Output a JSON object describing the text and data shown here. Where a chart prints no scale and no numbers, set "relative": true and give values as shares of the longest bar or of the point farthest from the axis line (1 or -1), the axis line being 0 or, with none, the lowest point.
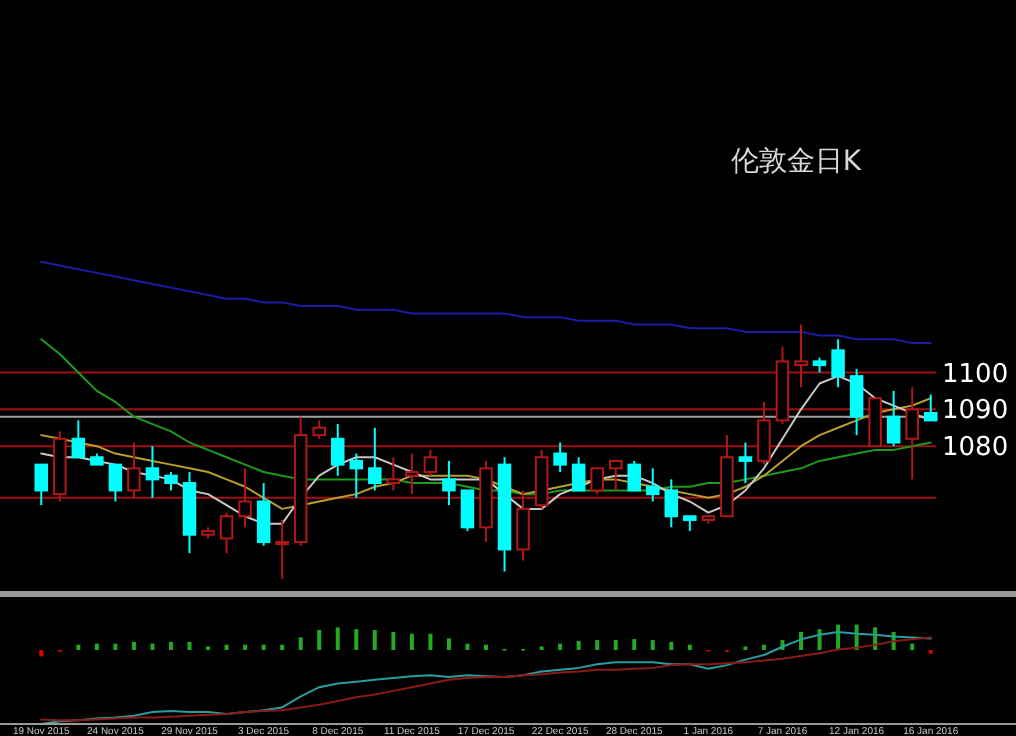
{
  "chart_data": [
    {
      "type": "candlestick",
      "title": "伦敦金日K",
      "ylim": [
        1041,
        1201
      ],
      "categories": [
        null,
        null,
        null,
        null,
        null,
        null,
        null,
        null,
        null,
        null,
        null,
        null,
        null,
        null,
        null,
        null,
        null,
        null,
        null,
        null,
        null,
        null,
        null,
        null,
        null,
        null,
        null,
        null,
        null,
        null,
        null,
        null,
        null,
        null,
        null,
        null,
        null,
        null,
        null,
        null,
        null,
        null,
        null,
        null,
        null,
        null,
        null,
        null,
        null
      ],
      "ohlc": [
        [
          1075,
          1075,
          1064,
          1068
        ],
        [
          1067,
          1084,
          1065,
          1082
        ],
        [
          1082,
          1087,
          1077,
          1077
        ],
        [
          1077,
          1078,
          1075,
          1075
        ],
        [
          1075,
          1075,
          1065,
          1068
        ],
        [
          1068,
          1081,
          1066,
          1074
        ],
        [
          1074,
          1080,
          1066,
          1071
        ],
        [
          1072,
          1073,
          1068,
          1070
        ],
        [
          1070,
          1073,
          1051,
          1056
        ],
        [
          1056,
          1058,
          1055,
          1057
        ],
        [
          1055,
          1062,
          1051,
          1061
        ],
        [
          1061,
          1074,
          1058,
          1065
        ],
        [
          1065,
          1070,
          1053,
          1054
        ],
        [
          1054,
          1060,
          1044,
          1054
        ],
        [
          1054,
          1088,
          1053,
          1083
        ],
        [
          1083,
          1087,
          1082,
          1085
        ],
        [
          1082,
          1086,
          1072,
          1075
        ],
        [
          1076,
          1078,
          1066,
          1074
        ],
        [
          1074,
          1085,
          1068,
          1070
        ],
        [
          1070,
          1077,
          1068,
          1071
        ],
        [
          1072,
          1078,
          1067,
          1073
        ],
        [
          1073,
          1079,
          1072,
          1077
        ],
        [
          1071,
          1076,
          1064,
          1068
        ],
        [
          1068,
          1068,
          1057,
          1058
        ],
        [
          1058,
          1076,
          1054,
          1074
        ],
        [
          1075,
          1077,
          1046,
          1052
        ],
        [
          1052,
          1068,
          1049,
          1063
        ],
        [
          1064,
          1079,
          1063,
          1077
        ],
        [
          1078,
          1081,
          1073,
          1075
        ],
        [
          1075,
          1077,
          1068,
          1068
        ],
        [
          1068,
          1074,
          1067,
          1074
        ],
        [
          1074,
          1076,
          1068,
          1076
        ],
        [
          1075,
          1076,
          1068,
          1068
        ],
        [
          1069,
          1074,
          1065,
          1067
        ],
        [
          1068,
          1071,
          1058,
          1061
        ],
        [
          1061,
          1061,
          1057,
          1060
        ],
        [
          1060,
          1061,
          1059,
          1061
        ],
        [
          1061,
          1083,
          1061,
          1077
        ],
        [
          1077,
          1081,
          1070,
          1076
        ],
        [
          1076,
          1092,
          1075,
          1087
        ],
        [
          1087,
          1107,
          1086,
          1103
        ],
        [
          1102,
          1113,
          1096,
          1103
        ],
        [
          1103,
          1104,
          1100,
          1102
        ],
        [
          1106,
          1109,
          1096,
          1099
        ],
        [
          1099,
          1101,
          1083,
          1088
        ],
        [
          1080,
          1093,
          1080,
          1093
        ],
        [
          1088,
          1095,
          1080,
          1081
        ],
        [
          1082,
          1096,
          1071,
          1090
        ],
        [
          1089,
          1094,
          1087,
          1087
        ]
      ],
      "colors": [
        "#00ffff",
        "#b01818",
        "#00ffff",
        "#00ffff",
        "#00ffff",
        "#b01818",
        "#00ffff",
        "#00ffff",
        "#00ffff",
        "#b01818",
        "#b01818",
        "#b01818",
        "#00ffff",
        "#b01818",
        "#b01818",
        "#b01818",
        "#00ffff",
        "#00ffff",
        "#00ffff",
        "#b01818",
        "#b01818",
        "#b01818",
        "#00ffff",
        "#00ffff",
        "#b01818",
        "#00ffff",
        "#b01818",
        "#b01818",
        "#00ffff",
        "#00ffff",
        "#b01818",
        "#b01818",
        "#00ffff",
        "#00ffff",
        "#00ffff",
        "#00ffff",
        "#b01818",
        "#b01818",
        "#00ffff",
        "#b01818",
        "#b01818",
        "#b01818",
        "#00ffff",
        "#00ffff",
        "#00ffff",
        "#b01818",
        "#00ffff",
        "#b01818",
        "#00ffff"
      ],
      "series": [
        {
          "type": "line",
          "color": "#1c1ca8",
          "values": [
            1130,
            1129,
            1128,
            1127,
            1126,
            1125,
            1124,
            1123,
            1122,
            1121,
            1120,
            1120,
            1119,
            1119,
            1118,
            1118,
            1118,
            1117,
            1117,
            1117,
            1116,
            1116,
            1116,
            1116,
            1116,
            1116,
            1115,
            1115,
            1115,
            1114,
            1114,
            1114,
            1113,
            1113,
            1113,
            1112,
            1112,
            1112,
            1111,
            1111,
            1111,
            1111,
            1110,
            1110,
            1109,
            1109,
            1109,
            1108,
            1108
          ]
        },
        {
          "type": "line",
          "color": "#1e9a1e",
          "values": [
            1109,
            1105,
            1100,
            1095,
            1092,
            1088,
            1086,
            1084,
            1081,
            1079,
            1077,
            1075,
            1073,
            1072,
            1071,
            1071,
            1071,
            1071,
            1071,
            1071,
            1070,
            1070,
            1070,
            1069,
            1068,
            1068,
            1067,
            1067,
            1068,
            1068,
            1068,
            1068,
            1068,
            1068,
            1069,
            1069,
            1070,
            1070,
            1071,
            1072,
            1073,
            1074,
            1076,
            1077,
            1078,
            1079,
            1079,
            1080,
            1081
          ]
        },
        {
          "type": "line",
          "color": "#b8a030",
          "values": [
            1083,
            1082,
            1081,
            1080,
            1078,
            1077,
            1076,
            1075,
            1074,
            1073,
            1071,
            1069,
            1066,
            1063,
            1064,
            1065,
            1066,
            1067,
            1069,
            1070,
            1072,
            1072,
            1072,
            1072,
            1071,
            1069,
            1067,
            1068,
            1069,
            1070,
            1071,
            1071,
            1070,
            1069,
            1068,
            1067,
            1066,
            1067,
            1069,
            1072,
            1076,
            1080,
            1083,
            1085,
            1087,
            1089,
            1090,
            1091,
            1093
          ]
        },
        {
          "type": "line",
          "color": "#c8c8c8",
          "values": [
            1078,
            1077,
            1077,
            1076,
            1075,
            1073,
            1072,
            1071,
            1068,
            1067,
            1064,
            1061,
            1059,
            1059,
            1066,
            1072,
            1075,
            1077,
            1077,
            1075,
            1073,
            1071,
            1071,
            1071,
            1071,
            1067,
            1063,
            1063,
            1067,
            1069,
            1071,
            1072,
            1072,
            1070,
            1067,
            1065,
            1062,
            1064,
            1068,
            1074,
            1082,
            1090,
            1097,
            1099,
            1097,
            1093,
            1091,
            1089,
            1087
          ]
        }
      ],
      "ref_lines": [
        {
          "axis": "y",
          "value": 1100,
          "label": "1100",
          "color": "#a01010"
        },
        {
          "axis": "y",
          "value": 1090,
          "label": "1090",
          "color": "#a01010"
        },
        {
          "axis": "y",
          "value": 1080,
          "label": "1080",
          "color": "#a01010"
        },
        {
          "axis": "y",
          "value": 1066,
          "label": null,
          "color": "#a01010"
        },
        {
          "axis": "y",
          "value": 1088,
          "label": null,
          "color": "#a0a0a0"
        }
      ]
    },
    {
      "type": "bar",
      "relative": true,
      "categories": [
        null,
        null,
        null,
        null,
        null,
        null,
        null,
        null,
        null,
        null,
        null,
        null,
        null,
        null,
        null,
        null,
        null,
        null,
        null,
        null,
        null,
        null,
        null,
        null,
        null,
        null,
        null,
        null,
        null,
        null,
        null,
        null,
        null,
        null,
        null,
        null,
        null,
        null,
        null,
        null,
        null,
        null,
        null,
        null,
        null,
        null,
        null,
        null,
        null
      ],
      "values": [
        -0.25,
        -0.07,
        0.21,
        0.25,
        0.25,
        0.32,
        0.25,
        0.32,
        0.32,
        0.14,
        0.21,
        0.21,
        0.21,
        0.21,
        0.5,
        0.79,
        0.89,
        0.82,
        0.79,
        0.71,
        0.64,
        0.64,
        0.46,
        0.25,
        0.21,
        0.04,
        0.04,
        0.14,
        0.25,
        0.36,
        0.39,
        0.39,
        0.43,
        0.39,
        0.32,
        0.21,
        -0.04,
        -0.07,
        0.14,
        0.21,
        0.39,
        0.71,
        0.82,
        1,
        1,
        0.89,
        0.71,
        0.25,
        -0.14
      ],
      "colors": [
        "#e00000",
        "#e00000",
        "#22aa22",
        "#22aa22",
        "#22aa22",
        "#22aa22",
        "#22aa22",
        "#22aa22",
        "#22aa22",
        "#22aa22",
        "#22aa22",
        "#22aa22",
        "#22aa22",
        "#22aa22",
        "#22aa22",
        "#22aa22",
        "#22aa22",
        "#22aa22",
        "#22aa22",
        "#22aa22",
        "#22aa22",
        "#22aa22",
        "#22aa22",
        "#22aa22",
        "#22aa22",
        "#22aa22",
        "#22aa22",
        "#22aa22",
        "#22aa22",
        "#22aa22",
        "#22aa22",
        "#22aa22",
        "#22aa22",
        "#22aa22",
        "#22aa22",
        "#22aa22",
        "#e00000",
        "#e00000",
        "#22aa22",
        "#22aa22",
        "#22aa22",
        "#22aa22",
        "#22aa22",
        "#22aa22",
        "#22aa22",
        "#22aa22",
        "#22aa22",
        "#22aa22",
        "#e00000"
      ]
    },
    {
      "type": "line",
      "relative": true,
      "tick_labels": "x",
      "categories": [
        "19 Nov 2015",
        null,
        null,
        null,
        "24 Nov 2015",
        null,
        null,
        null,
        "29 Nov 2015",
        null,
        null,
        null,
        "3 Dec 2015",
        null,
        null,
        null,
        "8 Dec 2015",
        null,
        null,
        null,
        "11 Dec 2015",
        null,
        null,
        null,
        "17 Dec 2015",
        null,
        null,
        null,
        "22 Dec 2015",
        null,
        null,
        null,
        "28 Dec 2015",
        null,
        null,
        null,
        "1 Jan 2016",
        null,
        null,
        null,
        "7 Jan 2016",
        null,
        null,
        null,
        "12 Jan 2016",
        null,
        null,
        null,
        "16 Jan 2016"
      ],
      "series": [
        {
          "color": "#2a9d9d",
          "values": [
            0,
            0.03,
            0.04,
            0.06,
            0.07,
            0.09,
            0.13,
            0.14,
            0.13,
            0.13,
            0.11,
            0.13,
            0.15,
            0.18,
            0.3,
            0.4,
            0.44,
            0.46,
            0.48,
            0.5,
            0.52,
            0.53,
            0.51,
            0.53,
            0.52,
            0.51,
            0.53,
            0.57,
            0.59,
            0.61,
            0.65,
            0.67,
            0.67,
            0.67,
            0.65,
            0.65,
            0.6,
            0.64,
            0.7,
            0.75,
            0.84,
            0.92,
            0.97,
            1,
            0.98,
            0.97,
            0.95,
            0.94,
            0.93
          ]
        },
        {
          "color": "#8b1a1a",
          "values": [
            0.05,
            0.04,
            0.04,
            0.05,
            0.06,
            0.07,
            0.07,
            0.08,
            0.09,
            0.1,
            0.11,
            0.13,
            0.14,
            0.15,
            0.18,
            0.21,
            0.25,
            0.29,
            0.32,
            0.36,
            0.4,
            0.44,
            0.48,
            0.5,
            0.51,
            0.51,
            0.53,
            0.54,
            0.56,
            0.57,
            0.59,
            0.59,
            0.6,
            0.61,
            0.64,
            0.65,
            0.65,
            0.66,
            0.67,
            0.69,
            0.71,
            0.74,
            0.77,
            0.81,
            0.83,
            0.86,
            0.9,
            0.92,
            0.94
          ]
        }
      ]
    }
  ]
}
